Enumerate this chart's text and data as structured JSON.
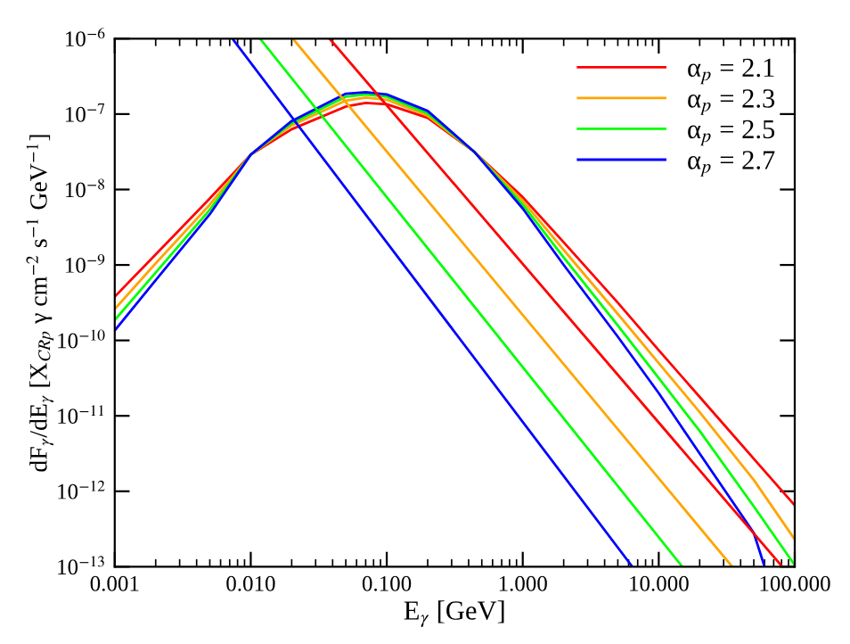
{
  "chart_data": {
    "type": "line",
    "log": "xy",
    "xlabel": "E$_{γ}$ [GeV]",
    "ylabel": "dF$_{γ}$/dE$_{γ}$ [X$_{CRp}$ γ cm$^{−2}$ s$^{−1}$ GeV$^{−1}$]",
    "x": [
      0.001,
      0.002,
      0.005,
      0.01,
      0.02,
      0.05,
      0.07,
      0.1,
      0.2,
      0.44,
      1,
      2,
      5,
      10,
      20,
      50,
      100
    ],
    "series": [
      {
        "name": "α$_{p}$ = 2.1",
        "color": "#ff0000",
        "values": [
          3.8e-10,
          1.38e-09,
          7.6e-09,
          2.9e-08,
          6.3e-08,
          1.26e-07,
          1.41e-07,
          1.35e-07,
          8.9e-08,
          3.16e-08,
          7.9e-09,
          2e-09,
          3.16e-10,
          7.4e-11,
          1.78e-11,
          2.7e-12,
          6.5e-13
        ]
      },
      {
        "name": "α$_{p}$ = 2.3",
        "color": "#ffa500",
        "values": [
          2.6e-10,
          1.05e-09,
          6.3e-09,
          2.9e-08,
          7.1e-08,
          1.51e-07,
          1.66e-07,
          1.55e-07,
          9.5e-08,
          3.16e-08,
          7.1e-09,
          1.58e-09,
          2.24e-10,
          5e-11,
          1.12e-11,
          1.41e-12,
          2.3e-13
        ]
      },
      {
        "name": "α$_{p}$ = 2.5",
        "color": "#00ff00",
        "values": [
          1.86e-10,
          7.9e-10,
          5.4e-09,
          2.9e-08,
          7.6e-08,
          1.7e-07,
          1.82e-07,
          1.7e-07,
          1.02e-07,
          3.16e-08,
          6.3e-09,
          1.26e-09,
          1.58e-10,
          3.16e-11,
          6.3e-12,
          6.3e-13,
          1.05e-13
        ]
      },
      {
        "name": "α$_{p}$ = 2.7",
        "color": "#0000ff",
        "x": [
          0.001,
          0.002,
          0.005,
          0.01,
          0.02,
          0.05,
          0.07,
          0.1,
          0.2,
          0.44,
          1,
          2,
          5,
          10,
          20,
          50,
          60
        ],
        "values": [
          1.35e-10,
          6.3e-10,
          4.7e-09,
          2.9e-08,
          8.1e-08,
          1.86e-07,
          1.95e-07,
          1.82e-07,
          1.1e-07,
          3.16e-08,
          5.6e-09,
          1e-09,
          1.12e-10,
          2e-11,
          3.16e-12,
          2.8e-13,
          1e-13
        ]
      },
      {
        "color": "#ff0000",
        "x": [
          0.038,
          81
        ],
        "values": [
          1e-06,
          1e-13
        ]
      },
      {
        "color": "#ffa500",
        "x": [
          0.0204,
          34.7
        ],
        "values": [
          1e-06,
          1e-13
        ]
      },
      {
        "color": "#00ff00",
        "x": [
          0.0117,
          14.9
        ],
        "values": [
          1e-06,
          1e-13
        ]
      },
      {
        "color": "#0000ff",
        "x": [
          0.00733,
          6.4
        ],
        "values": [
          1e-06,
          1e-13
        ]
      }
    ],
    "xlim": [
      0.001,
      100
    ],
    "ylim": [
      1e-13,
      1e-06
    ],
    "xticks": [
      {
        "value": 0.001,
        "label": "0.001"
      },
      {
        "value": 0.01,
        "label": "0.010"
      },
      {
        "value": 0.1,
        "label": "0.100"
      },
      {
        "value": 1,
        "label": "1.000"
      },
      {
        "value": 10,
        "label": "10.000"
      },
      {
        "value": 100,
        "label": "100.000"
      }
    ],
    "yticks": [
      {
        "value": 1e-13,
        "label": "10$^{−13}$"
      },
      {
        "value": 1e-12,
        "label": "10$^{−12}$"
      },
      {
        "value": 1e-11,
        "label": "10$^{−11}$"
      },
      {
        "value": 1e-10,
        "label": "10$^{−10}$"
      },
      {
        "value": 1e-09,
        "label": "10$^{−9}$"
      },
      {
        "value": 1e-08,
        "label": "10$^{−8}$"
      },
      {
        "value": 1e-07,
        "label": "10$^{−7}$"
      },
      {
        "value": 1e-06,
        "label": "10$^{−6}$"
      }
    ],
    "legend": "top right",
    "grid": false,
    "marker": "none",
    "line_style": "solid"
  }
}
